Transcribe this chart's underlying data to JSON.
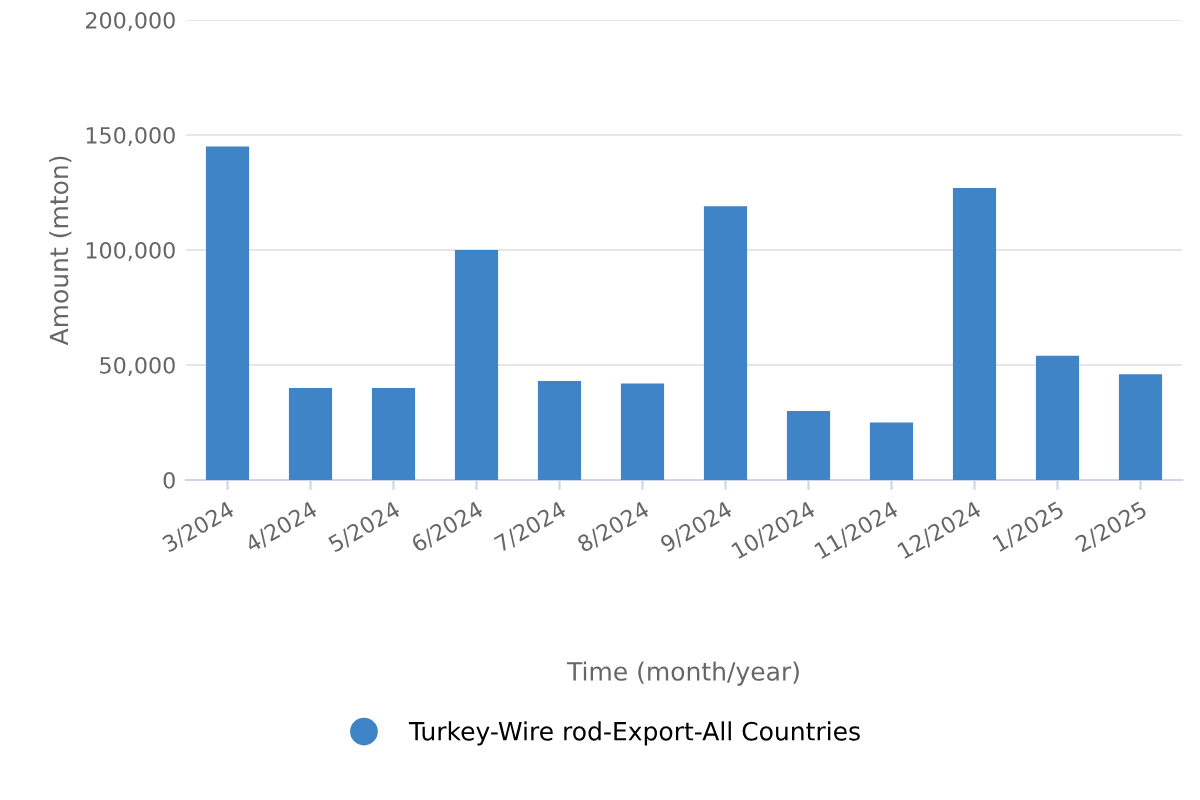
{
  "chart_data": {
    "type": "bar",
    "xlabel": "Time (month/year)",
    "ylabel": "Amount (mton)",
    "categories": [
      "3/2024",
      "4/2024",
      "5/2024",
      "6/2024",
      "7/2024",
      "8/2024",
      "9/2024",
      "10/2024",
      "11/2024",
      "12/2024",
      "1/2025",
      "2/2025"
    ],
    "series": [
      {
        "name": "Turkey-Wire rod-Export-All Countries",
        "color": "#3f84c6",
        "values": [
          145000,
          40000,
          40000,
          100000,
          43000,
          42000,
          119000,
          30000,
          25000,
          127000,
          54000,
          46000
        ]
      }
    ],
    "ylim": [
      0,
      200000
    ],
    "yticks": [
      {
        "value": 0,
        "label": "0"
      },
      {
        "value": 50000,
        "label": "50,000"
      },
      {
        "value": 100000,
        "label": "100,000"
      },
      {
        "value": 150000,
        "label": "150,000"
      },
      {
        "value": 200000,
        "label": "200,000"
      }
    ],
    "grid": "y",
    "legend": "bottom"
  }
}
